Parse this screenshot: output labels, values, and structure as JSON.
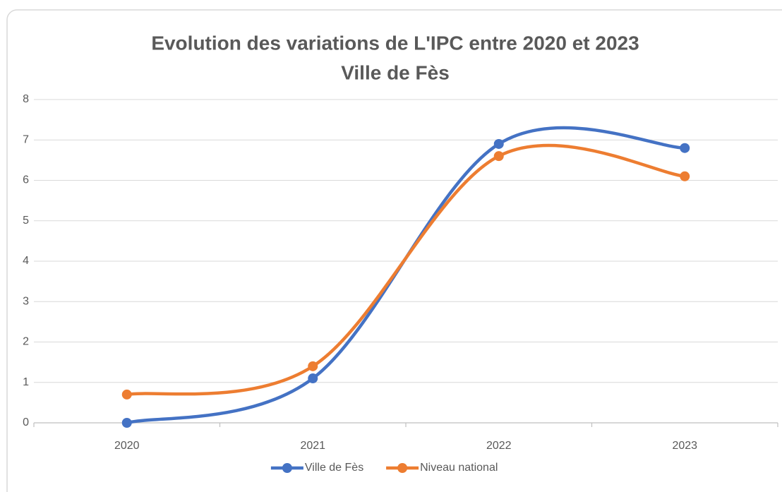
{
  "chart_data": {
    "type": "line",
    "title": "Evolution des variations de L'IPC entre 2020 et 2023",
    "subtitle": "Ville de Fès",
    "categories": [
      "2020",
      "2021",
      "2022",
      "2023"
    ],
    "series": [
      {
        "name": "Ville de Fès",
        "color": "#4472c4",
        "values": [
          0,
          1.1,
          6.9,
          6.8
        ]
      },
      {
        "name": "Niveau national",
        "color": "#ed7d31",
        "values": [
          0.7,
          1.4,
          6.6,
          6.1
        ]
      }
    ],
    "ylim": [
      0,
      8
    ],
    "yticks": [
      0,
      1,
      2,
      3,
      4,
      5,
      6,
      7,
      8
    ],
    "grid": true,
    "smooth": true,
    "legend": "bottom"
  }
}
